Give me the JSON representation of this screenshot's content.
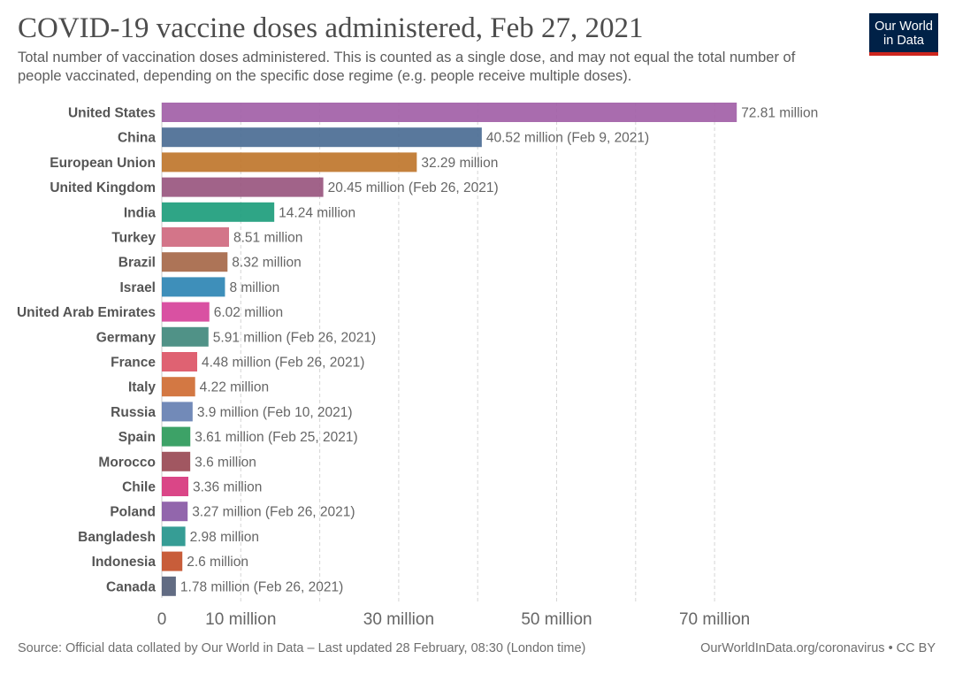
{
  "header": {
    "title": "COVID-19 vaccine doses administered, Feb 27, 2021",
    "subtitle": "Total number of vaccination doses administered. This is counted as a single dose, and may not equal the total number of people vaccinated, depending on the specific dose regime (e.g. people receive multiple doses)."
  },
  "logo": {
    "line1": "Our World",
    "line2": "in Data",
    "bg_color": "#002147",
    "accent_color": "#ce261e"
  },
  "footer": {
    "source": "Source: Official data collated by Our World in Data – Last updated 28 February, 08:30 (London time)",
    "credit": "OurWorldInData.org/coronavirus • CC BY"
  },
  "chart_data": {
    "type": "bar",
    "orientation": "horizontal",
    "grid": true,
    "xlim": [
      0,
      80
    ],
    "x_ticks": [
      {
        "value": 0,
        "label": "0"
      },
      {
        "value": 10,
        "label": "10 million"
      },
      {
        "value": 30,
        "label": "30 million"
      },
      {
        "value": 50,
        "label": "50 million"
      },
      {
        "value": 70,
        "label": "70 million"
      }
    ],
    "gridlines": [
      10,
      20,
      30,
      40,
      50,
      60,
      70
    ],
    "bars": [
      {
        "category": "United States",
        "value": 72.81,
        "label": "72.81 million",
        "color": "#a261a8"
      },
      {
        "category": "China",
        "value": 40.52,
        "label": "40.52 million (Feb 9, 2021)",
        "color": "#4c6e94"
      },
      {
        "category": "European Union",
        "value": 32.29,
        "label": "32.29 million",
        "color": "#c0772e"
      },
      {
        "category": "United Kingdom",
        "value": 20.45,
        "label": "20.45 million (Feb 26, 2021)",
        "color": "#9a5780"
      },
      {
        "category": "India",
        "value": 14.24,
        "label": "14.24 million",
        "color": "#1f9e7d"
      },
      {
        "category": "Turkey",
        "value": 8.51,
        "label": "8.51 million",
        "color": "#d06a80"
      },
      {
        "category": "Brazil",
        "value": 8.32,
        "label": "8.32 million",
        "color": "#a7694a"
      },
      {
        "category": "Israel",
        "value": 8,
        "label": "8 million",
        "color": "#2f86b5"
      },
      {
        "category": "United Arab Emirates",
        "value": 6.02,
        "label": "6.02 million",
        "color": "#d6449b"
      },
      {
        "category": "Germany",
        "value": 5.91,
        "label": "5.91 million (Feb 26, 2021)",
        "color": "#438a7e"
      },
      {
        "category": "France",
        "value": 4.48,
        "label": "4.48 million (Feb 26, 2021)",
        "color": "#dd5667"
      },
      {
        "category": "Italy",
        "value": 4.22,
        "label": "4.22 million",
        "color": "#d06e35"
      },
      {
        "category": "Russia",
        "value": 3.9,
        "label": "3.9 million (Feb 10, 2021)",
        "color": "#6781b3"
      },
      {
        "category": "Spain",
        "value": 3.61,
        "label": "3.61 million (Feb 25, 2021)",
        "color": "#2e9b5b"
      },
      {
        "category": "Morocco",
        "value": 3.6,
        "label": "3.6 million",
        "color": "#9a4a55"
      },
      {
        "category": "Chile",
        "value": 3.36,
        "label": "3.36 million",
        "color": "#d7387e"
      },
      {
        "category": "Poland",
        "value": 3.27,
        "label": "3.27 million (Feb 26, 2021)",
        "color": "#8a5aa6"
      },
      {
        "category": "Bangladesh",
        "value": 2.98,
        "label": "2.98 million",
        "color": "#27968d"
      },
      {
        "category": "Indonesia",
        "value": 2.6,
        "label": "2.6 million",
        "color": "#c4512b"
      },
      {
        "category": "Canada",
        "value": 1.78,
        "label": "1.78 million (Feb 26, 2021)",
        "color": "#56617a"
      }
    ]
  }
}
